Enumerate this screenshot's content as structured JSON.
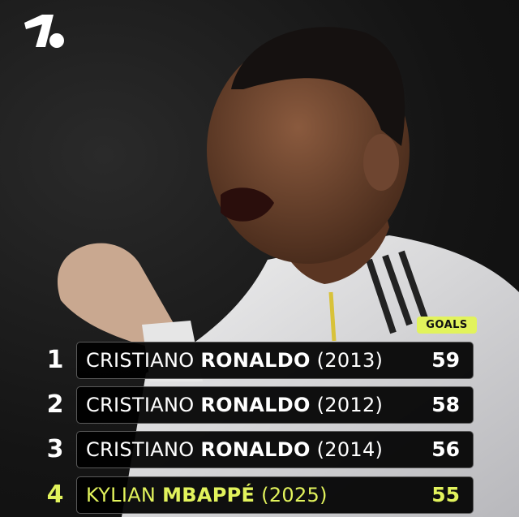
{
  "brand": {
    "logo": "onefootball-logo"
  },
  "header": {
    "goals_label": "GOALS"
  },
  "colors": {
    "accent": "#e2f35c",
    "row_bg": "#000000",
    "text": "#ffffff"
  },
  "rows": [
    {
      "rank": "1",
      "first": "CRISTIANO",
      "last": "RONALDO",
      "year": "(2013)",
      "goals": "59",
      "highlight": false
    },
    {
      "rank": "2",
      "first": "CRISTIANO",
      "last": "RONALDO",
      "year": "(2012)",
      "goals": "58",
      "highlight": false
    },
    {
      "rank": "3",
      "first": "CRISTIANO",
      "last": "RONALDO",
      "year": "(2014)",
      "goals": "56",
      "highlight": false
    },
    {
      "rank": "4",
      "first": "KYLIAN",
      "last": "MBAPPÉ",
      "year": "(2025)",
      "goals": "55",
      "highlight": true
    }
  ]
}
